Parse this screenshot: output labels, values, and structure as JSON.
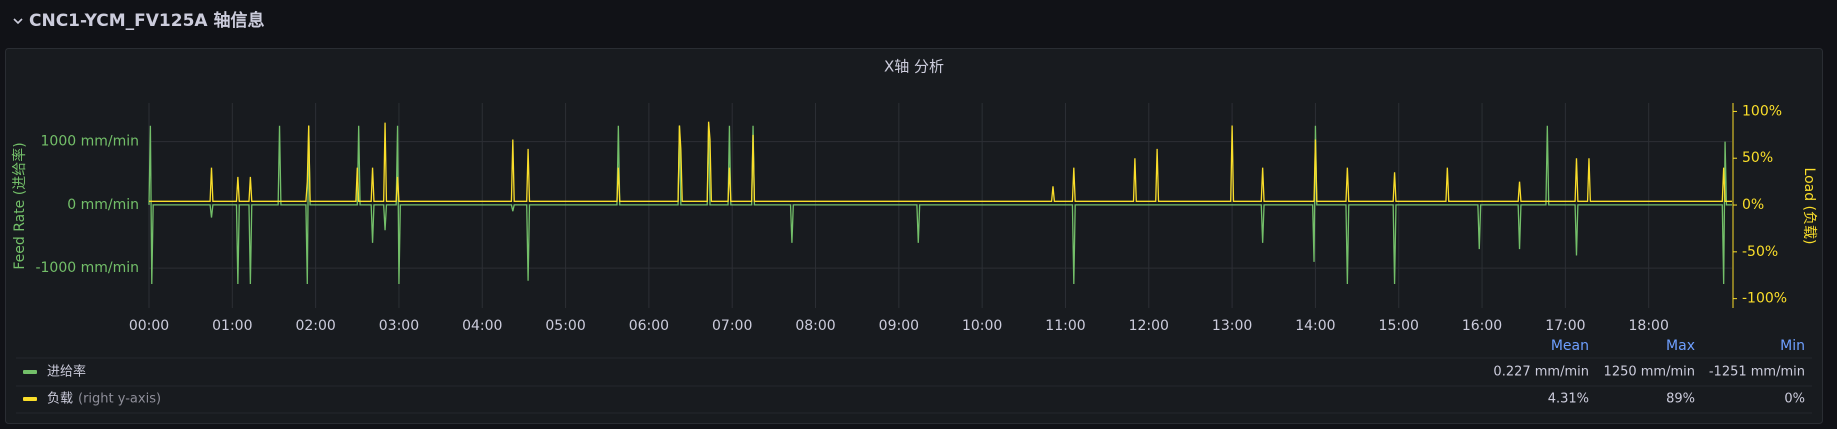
{
  "row_title": "CNC1-YCM_FV125A 轴信息",
  "chart_data": {
    "type": "line",
    "title": "X轴 分析",
    "y_label": "Feed Rate (进给率)",
    "y2_label": "Load (负载)",
    "xlim": [
      "00:00",
      "19:00"
    ],
    "xticks": [
      "00:00",
      "01:00",
      "02:00",
      "03:00",
      "04:00",
      "05:00",
      "06:00",
      "07:00",
      "08:00",
      "09:00",
      "10:00",
      "11:00",
      "12:00",
      "13:00",
      "14:00",
      "15:00",
      "16:00",
      "17:00",
      "18:00"
    ],
    "ylim": [
      -1630,
      1610
    ],
    "yticks": [
      {
        "value": -1000,
        "label": "-1000 mm/min"
      },
      {
        "value": 0,
        "label": "0 mm/min"
      },
      {
        "value": 1000,
        "label": "1000 mm/min"
      }
    ],
    "y2lim": [
      -110,
      109
    ],
    "y2ticks": [
      {
        "value": -100,
        "label": "-100%"
      },
      {
        "value": -50,
        "label": "-50%"
      },
      {
        "value": 0,
        "label": "0%"
      },
      {
        "value": 50,
        "label": "50%"
      },
      {
        "value": 100,
        "label": "100%"
      }
    ],
    "grid": true,
    "legend_position": "bottom",
    "legend_columns": [
      "Mean",
      "Max",
      "Min"
    ],
    "x": [
      "00:00",
      "00:01",
      "00:02",
      "00:03",
      "00:44",
      "00:45",
      "00:46",
      "01:03",
      "01:04",
      "01:05",
      "01:12",
      "01:13",
      "01:14",
      "01:33",
      "01:34",
      "01:35",
      "01:53",
      "01:54",
      "01:55",
      "01:56",
      "02:29",
      "02:30",
      "02:31",
      "02:32",
      "02:40",
      "02:41",
      "02:42",
      "02:49",
      "02:50",
      "02:51",
      "02:58",
      "02:59",
      "03:00",
      "03:01",
      "04:21",
      "04:22",
      "04:23",
      "04:32",
      "04:33",
      "04:34",
      "05:37",
      "05:38",
      "05:39",
      "06:21",
      "06:22",
      "06:23",
      "06:24",
      "06:42",
      "06:43",
      "06:44",
      "06:45",
      "06:57",
      "06:58",
      "06:59",
      "07:14",
      "07:15",
      "07:16",
      "07:42",
      "07:43",
      "07:44",
      "09:13",
      "09:14",
      "09:15",
      "10:50",
      "10:51",
      "10:52",
      "11:05",
      "11:06",
      "11:07",
      "11:49",
      "11:50",
      "11:51",
      "12:05",
      "12:06",
      "12:07",
      "12:59",
      "13:00",
      "13:01",
      "13:21",
      "13:22",
      "13:23",
      "13:58",
      "13:59",
      "14:00",
      "14:01",
      "14:22",
      "14:23",
      "14:24",
      "14:56",
      "14:57",
      "14:58",
      "15:34",
      "15:35",
      "15:36",
      "15:57",
      "15:58",
      "15:59",
      "16:26",
      "16:27",
      "16:28",
      "16:46",
      "16:47",
      "16:48",
      "17:07",
      "17:08",
      "17:09",
      "17:16",
      "17:17",
      "17:18",
      "18:53",
      "18:54",
      "18:55",
      "18:56",
      "19:00"
    ],
    "series": [
      {
        "name": "进给率",
        "color": "#73bf69",
        "stats": [
          "0.227 mm/min",
          "1250 mm/min",
          "-1251 mm/min"
        ],
        "values": [
          0,
          1250,
          -1251,
          0,
          0,
          -200,
          0,
          0,
          -1250,
          0,
          0,
          -1250,
          0,
          0,
          1250,
          0,
          0,
          -1250,
          1250,
          0,
          0,
          0,
          1250,
          0,
          0,
          -600,
          0,
          0,
          -400,
          0,
          0,
          1250,
          -1250,
          0,
          0,
          -100,
          0,
          0,
          -1200,
          0,
          0,
          1250,
          0,
          0,
          1250,
          0,
          0,
          0,
          1250,
          0,
          0,
          0,
          1250,
          0,
          0,
          1250,
          0,
          0,
          -600,
          0,
          0,
          -600,
          0,
          0,
          0,
          0,
          0,
          -1250,
          0,
          0,
          0,
          0,
          0,
          0,
          0,
          0,
          0,
          0,
          0,
          -600,
          0,
          0,
          -900,
          1250,
          0,
          0,
          -1250,
          0,
          0,
          -1250,
          0,
          0,
          0,
          0,
          0,
          -700,
          0,
          0,
          -700,
          0,
          0,
          1250,
          0,
          0,
          -800,
          0,
          0,
          0,
          0,
          0,
          -1250,
          1000,
          0,
          0
        ]
      },
      {
        "name": "负载",
        "axis": "y2",
        "legend_note": "(right y-axis)",
        "color": "#fade2a",
        "stats": [
          "4.31%",
          "89%",
          "0%"
        ],
        "values": [
          4,
          4,
          4,
          4,
          4,
          40,
          4,
          4,
          30,
          4,
          4,
          30,
          4,
          4,
          4,
          4,
          4,
          25,
          85,
          4,
          4,
          40,
          4,
          4,
          4,
          40,
          4,
          4,
          88,
          4,
          4,
          30,
          4,
          4,
          4,
          70,
          4,
          4,
          60,
          4,
          4,
          40,
          4,
          4,
          85,
          60,
          4,
          4,
          89,
          70,
          4,
          4,
          40,
          4,
          4,
          75,
          4,
          4,
          4,
          4,
          4,
          4,
          4,
          4,
          20,
          4,
          4,
          40,
          4,
          4,
          50,
          4,
          4,
          60,
          4,
          4,
          85,
          4,
          4,
          40,
          4,
          4,
          4,
          70,
          4,
          4,
          40,
          4,
          4,
          35,
          4,
          4,
          40,
          4,
          4,
          4,
          4,
          4,
          25,
          4,
          4,
          4,
          4,
          4,
          50,
          4,
          4,
          50,
          4,
          4,
          40,
          4,
          4,
          4
        ]
      }
    ]
  }
}
